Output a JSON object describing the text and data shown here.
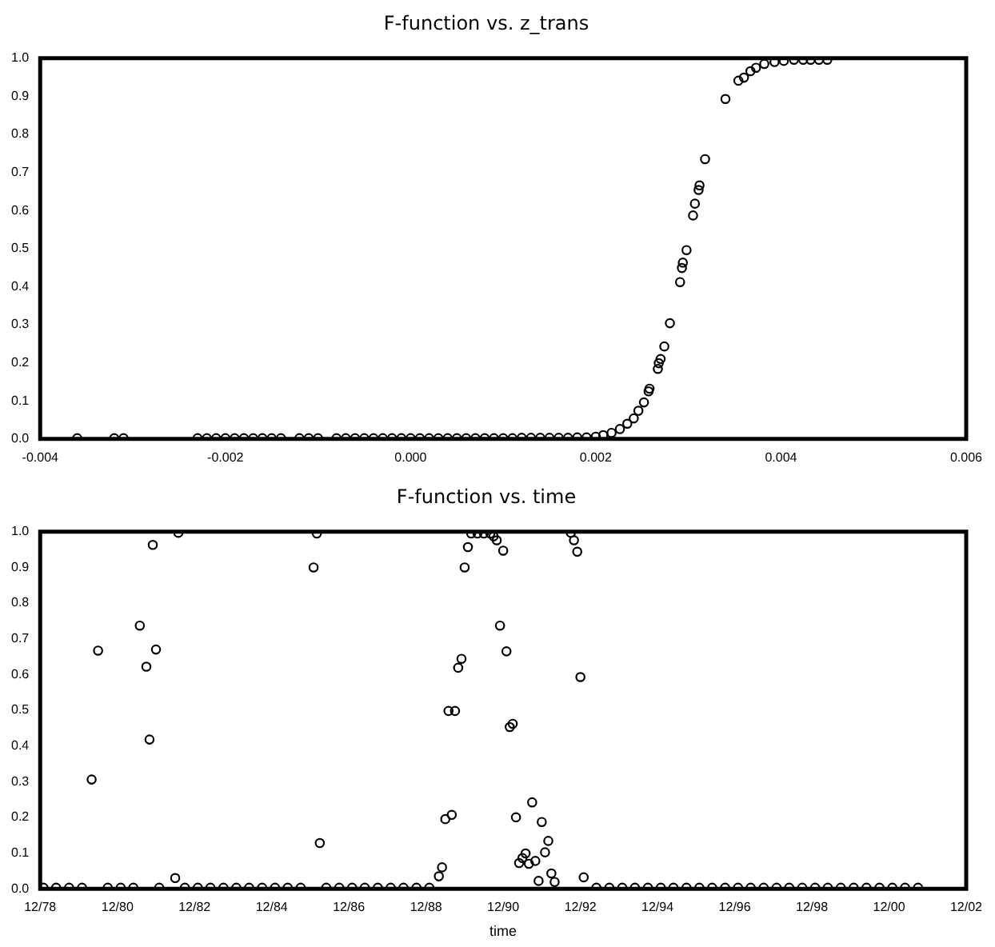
{
  "chart_data": [
    {
      "type": "scatter",
      "title": "F-function vs. z_trans",
      "marker": "circle",
      "color": "#000000",
      "xlim": [
        -0.004,
        0.006
      ],
      "ylim": [
        0,
        1
      ],
      "xticks": [
        {
          "value": -0.004,
          "label": "-0.004"
        },
        {
          "value": -0.002,
          "label": "-0.002"
        },
        {
          "value": 0,
          "label": "0.000"
        },
        {
          "value": 0.002,
          "label": "0.002"
        },
        {
          "value": 0.004,
          "label": "0.004"
        },
        {
          "value": 0.006,
          "label": "0.006"
        }
      ],
      "yticks": [
        {
          "value": 0,
          "label": "0.0"
        },
        {
          "value": 0.1,
          "label": "0.1"
        },
        {
          "value": 0.2,
          "label": "0.2"
        },
        {
          "value": 0.3,
          "label": "0.3"
        },
        {
          "value": 0.4,
          "label": "0.4"
        },
        {
          "value": 0.5,
          "label": "0.5"
        },
        {
          "value": 0.6,
          "label": "0.6"
        },
        {
          "value": 0.7,
          "label": "0.7"
        },
        {
          "value": 0.8,
          "label": "0.8"
        },
        {
          "value": 0.9,
          "label": "0.9"
        },
        {
          "value": 1,
          "label": "1.0"
        }
      ],
      "x": [
        -0.0036,
        -0.0032,
        -0.0031,
        -0.0023,
        -0.0022,
        -0.0021,
        -0.002,
        -0.0019,
        -0.0018,
        -0.0017,
        -0.0016,
        -0.0015,
        -0.0014,
        -0.0012,
        -0.0011,
        -0.001,
        -0.0008,
        -0.0007,
        -0.0006,
        -0.0005,
        -0.0004,
        -0.0003,
        -0.0002,
        -0.0001,
        0,
        0.0001,
        0.0002,
        0.0003,
        0.0004,
        0.0005,
        0.0006,
        0.0007,
        0.0008,
        0.0009,
        0.001,
        0.0011,
        0.0012,
        0.0013,
        0.0014,
        0.0015,
        0.0016,
        0.0017,
        0.0018,
        0.0019,
        0.002,
        0.00208,
        0.00217,
        0.00226,
        0.00234,
        0.00241,
        0.00246,
        0.00252,
        0.00257,
        0.00258,
        0.00267,
        0.00268,
        0.0027,
        0.00274,
        0.0028,
        0.00291,
        0.00293,
        0.00294,
        0.00298,
        0.00305,
        0.00307,
        0.00311,
        0.00312,
        0.00318,
        0.0034,
        0.00354,
        0.0036,
        0.00367,
        0.00373,
        0.00382,
        0.00393,
        0.00403,
        0.00414,
        0.00424,
        0.00432,
        0.00441,
        0.0045
      ],
      "values": [
        0.002,
        0.002,
        0.002,
        0.002,
        0.002,
        0.002,
        0.002,
        0.002,
        0.002,
        0.002,
        0.002,
        0.002,
        0.002,
        0.002,
        0.002,
        0.002,
        0.002,
        0.002,
        0.002,
        0.002,
        0.002,
        0.002,
        0.002,
        0.002,
        0.002,
        0.002,
        0.002,
        0.002,
        0.002,
        0.002,
        0.002,
        0.002,
        0.002,
        0.002,
        0.002,
        0.002,
        0.003,
        0.003,
        0.003,
        0.003,
        0.003,
        0.003,
        0.004,
        0.004,
        0.006,
        0.01,
        0.016,
        0.026,
        0.04,
        0.054,
        0.074,
        0.096,
        0.125,
        0.132,
        0.184,
        0.199,
        0.21,
        0.243,
        0.304,
        0.412,
        0.449,
        0.463,
        0.496,
        0.587,
        0.618,
        0.654,
        0.666,
        0.735,
        0.893,
        0.941,
        0.949,
        0.966,
        0.975,
        0.985,
        0.99,
        0.993,
        0.996,
        0.996,
        0.996,
        0.996,
        0.996
      ]
    },
    {
      "type": "scatter",
      "title": "F-function vs. time",
      "xlabel": "time",
      "marker": "circle",
      "color": "#000000",
      "xlim": [
        "1978-12",
        "2002-12"
      ],
      "ylim": [
        0,
        1
      ],
      "xticks": [
        {
          "value": "1978-12",
          "label": "12/78"
        },
        {
          "value": "1980-12",
          "label": "12/80"
        },
        {
          "value": "1982-12",
          "label": "12/82"
        },
        {
          "value": "1984-12",
          "label": "12/84"
        },
        {
          "value": "1986-12",
          "label": "12/86"
        },
        {
          "value": "1988-12",
          "label": "12/88"
        },
        {
          "value": "1990-12",
          "label": "12/90"
        },
        {
          "value": "1992-12",
          "label": "12/92"
        },
        {
          "value": "1994-12",
          "label": "12/94"
        },
        {
          "value": "1996-12",
          "label": "12/96"
        },
        {
          "value": "1998-12",
          "label": "12/98"
        },
        {
          "value": "2000-12",
          "label": "12/00"
        },
        {
          "value": "2002-12",
          "label": "12/02"
        }
      ],
      "yticks": [
        {
          "value": 0,
          "label": "0.0"
        },
        {
          "value": 0.1,
          "label": "0.1"
        },
        {
          "value": 0.2,
          "label": "0.2"
        },
        {
          "value": 0.3,
          "label": "0.3"
        },
        {
          "value": 0.4,
          "label": "0.4"
        },
        {
          "value": 0.5,
          "label": "0.5"
        },
        {
          "value": 0.6,
          "label": "0.6"
        },
        {
          "value": 0.7,
          "label": "0.7"
        },
        {
          "value": 0.8,
          "label": "0.8"
        },
        {
          "value": 0.9,
          "label": "0.9"
        },
        {
          "value": 1,
          "label": "1.0"
        }
      ],
      "x": [
        "1980-04",
        "1980-06",
        "1981-07",
        "1981-09",
        "1981-10",
        "1981-11",
        "1981-12",
        "1982-07",
        "1982-06",
        "1986-01",
        "1986-02",
        "1986-03",
        "1989-04",
        "1989-05",
        "1989-06",
        "1989-08",
        "1989-07",
        "1989-09",
        "1989-10",
        "1989-11",
        "1989-12",
        "1990-01",
        "1990-02",
        "1990-04",
        "1990-06",
        "1990-08",
        "1990-09",
        "1990-10",
        "1990-11",
        "1990-12",
        "1991-01",
        "1991-02",
        "1991-03",
        "1991-04",
        "1991-09",
        "1991-12",
        "1992-02",
        "1992-01",
        "1991-07",
        "1991-08",
        "1991-10",
        "1991-06",
        "1991-05",
        "1991-11",
        "1992-03",
        "1992-04",
        "1992-09",
        "1992-10",
        "1992-11",
        "1992-12",
        "1993-01",
        "1979-01",
        "1979-05",
        "1979-09",
        "1980-01",
        "1980-09",
        "1981-01",
        "1981-05",
        "1982-01",
        "1982-09",
        "1983-01",
        "1983-05",
        "1983-09",
        "1984-01",
        "1984-05",
        "1984-09",
        "1985-01",
        "1985-05",
        "1985-09",
        "1986-05",
        "1986-09",
        "1987-01",
        "1987-05",
        "1987-09",
        "1988-01",
        "1988-05",
        "1988-09",
        "1989-01",
        "1993-05",
        "1993-09",
        "1994-01",
        "1994-05",
        "1994-09",
        "1995-01",
        "1995-05",
        "1995-09",
        "1996-01",
        "1996-05",
        "1996-09",
        "1997-01",
        "1997-05",
        "1997-09",
        "1998-01",
        "1998-05",
        "1998-09",
        "1999-01",
        "1999-05",
        "1999-09",
        "2000-01",
        "2000-05",
        "2000-09",
        "2001-01",
        "2001-05",
        "2001-09"
      ],
      "values": [
        0.306,
        0.667,
        0.737,
        0.622,
        0.418,
        0.963,
        0.67,
        0.997,
        0.03,
        0.9,
        0.995,
        0.128,
        0.035,
        0.06,
        0.195,
        0.207,
        0.498,
        0.498,
        0.619,
        0.644,
        0.9,
        0.957,
        0.995,
        0.995,
        0.995,
        0.995,
        0.987,
        0.976,
        0.737,
        0.947,
        0.665,
        0.453,
        0.462,
        0.2,
        0.242,
        0.187,
        0.134,
        0.102,
        0.099,
        0.07,
        0.078,
        0.086,
        0.072,
        0.022,
        0.043,
        0.019,
        0.997,
        0.976,
        0.944,
        0.593,
        0.032,
        0.003,
        0.003,
        0.003,
        0.003,
        0.003,
        0.003,
        0.003,
        0.003,
        0.003,
        0.003,
        0.003,
        0.003,
        0.003,
        0.003,
        0.003,
        0.003,
        0.003,
        0.003,
        0.003,
        0.003,
        0.003,
        0.003,
        0.003,
        0.003,
        0.003,
        0.003,
        0.003,
        0.003,
        0.003,
        0.003,
        0.003,
        0.003,
        0.003,
        0.003,
        0.003,
        0.003,
        0.003,
        0.003,
        0.003,
        0.003,
        0.003,
        0.003,
        0.003,
        0.003,
        0.003,
        0.003,
        0.003,
        0.003,
        0.003,
        0.003,
        0.003,
        0.003,
        0.003
      ]
    }
  ]
}
